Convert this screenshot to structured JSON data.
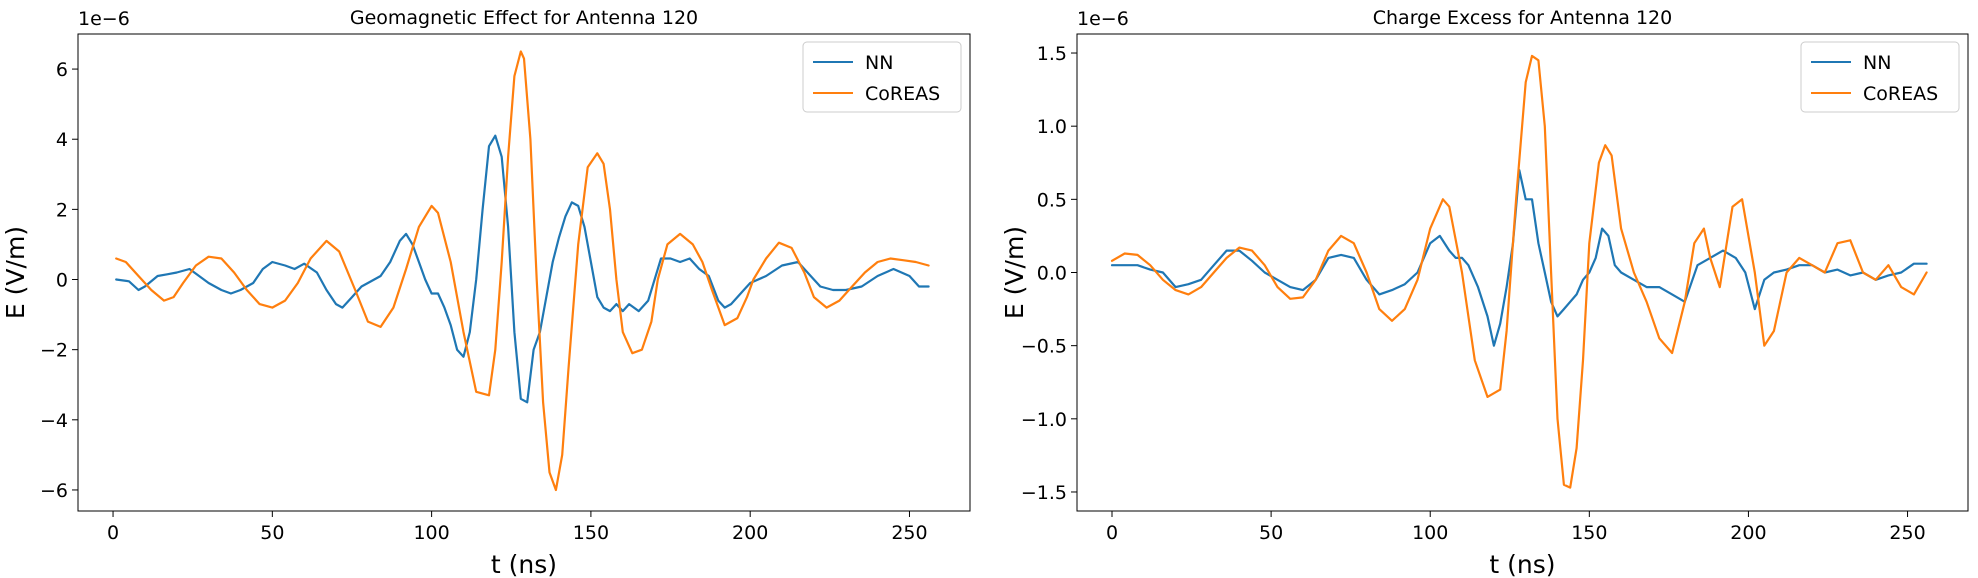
{
  "chart_data": [
    {
      "type": "line",
      "title": "Geomagnetic Effect for Antenna 120",
      "xlabel": "t (ns)",
      "ylabel": "E (V/m)",
      "y_offset_label": "1e−6",
      "xlim": [
        -11,
        269
      ],
      "ylim": [
        -6.6,
        7.0
      ],
      "xticks": [
        0,
        50,
        100,
        150,
        200,
        250
      ],
      "xtick_labels": [
        "0",
        "50",
        "100",
        "150",
        "200",
        "250"
      ],
      "yticks": [
        -6,
        -4,
        -2,
        0,
        2,
        4,
        6
      ],
      "ytick_labels": [
        "−6",
        "−4",
        "−2",
        "0",
        "2",
        "4",
        "6"
      ],
      "legend_position": "top-right",
      "grid": false,
      "series": [
        {
          "name": "NN",
          "color": "#1f77b4",
          "x": [
            1,
            5,
            8,
            10,
            14,
            17,
            20,
            24,
            27,
            30,
            34,
            37,
            40,
            44,
            47,
            50,
            54,
            57,
            60,
            64,
            67,
            70,
            72,
            75,
            78,
            80,
            84,
            87,
            90,
            92,
            94,
            96,
            98,
            100,
            102,
            104,
            106,
            108,
            110,
            112,
            114,
            116,
            118,
            120,
            122,
            124,
            126,
            128,
            130,
            132,
            134,
            136,
            138,
            140,
            142,
            144,
            146,
            148,
            150,
            152,
            154,
            156,
            158,
            160,
            162,
            165,
            168,
            172,
            175,
            178,
            181,
            184,
            187,
            190,
            192,
            194,
            196,
            198,
            200,
            205,
            210,
            215,
            218,
            222,
            226,
            230,
            235,
            240,
            245,
            250,
            253,
            256
          ],
          "y": [
            0.0,
            -0.05,
            -0.3,
            -0.2,
            0.1,
            0.15,
            0.2,
            0.3,
            0.1,
            -0.1,
            -0.3,
            -0.4,
            -0.3,
            -0.1,
            0.3,
            0.5,
            0.4,
            0.3,
            0.45,
            0.2,
            -0.3,
            -0.7,
            -0.8,
            -0.5,
            -0.2,
            -0.1,
            0.1,
            0.5,
            1.1,
            1.3,
            1.0,
            0.5,
            0.0,
            -0.4,
            -0.4,
            -0.8,
            -1.3,
            -2.0,
            -2.2,
            -1.5,
            0.0,
            2.0,
            3.8,
            4.1,
            3.5,
            1.5,
            -1.5,
            -3.4,
            -3.5,
            -2.0,
            -1.5,
            -0.5,
            0.5,
            1.2,
            1.8,
            2.2,
            2.1,
            1.5,
            0.5,
            -0.5,
            -0.8,
            -0.9,
            -0.7,
            -0.9,
            -0.7,
            -0.9,
            -0.6,
            0.6,
            0.6,
            0.5,
            0.6,
            0.3,
            0.1,
            -0.6,
            -0.8,
            -0.7,
            -0.5,
            -0.3,
            -0.1,
            0.1,
            0.4,
            0.5,
            0.2,
            -0.2,
            -0.3,
            -0.3,
            -0.2,
            0.1,
            0.3,
            0.1,
            -0.2,
            -0.2
          ]
        },
        {
          "name": "CoREAS",
          "color": "#ff7f0e",
          "x": [
            1,
            4,
            8,
            12,
            16,
            19,
            22,
            26,
            30,
            34,
            38,
            42,
            46,
            50,
            54,
            58,
            62,
            67,
            71,
            76,
            80,
            84,
            88,
            92,
            96,
            100,
            102,
            106,
            110,
            114,
            118,
            120,
            122,
            124,
            126,
            128,
            129,
            131,
            133,
            135,
            137,
            139,
            141,
            143,
            146,
            149,
            152,
            154,
            156,
            158,
            160,
            163,
            166,
            169,
            171,
            174,
            178,
            182,
            185,
            188,
            192,
            196,
            199,
            201,
            205,
            209,
            213,
            217,
            220,
            224,
            228,
            232,
            236,
            240,
            244,
            248,
            252,
            256
          ],
          "y": [
            0.6,
            0.5,
            0.1,
            -0.3,
            -0.6,
            -0.5,
            -0.1,
            0.4,
            0.65,
            0.6,
            0.2,
            -0.3,
            -0.7,
            -0.8,
            -0.6,
            -0.1,
            0.6,
            1.1,
            0.8,
            -0.3,
            -1.2,
            -1.35,
            -0.8,
            0.3,
            1.5,
            2.1,
            1.9,
            0.5,
            -1.5,
            -3.2,
            -3.3,
            -2.0,
            0.5,
            3.5,
            5.8,
            6.5,
            6.3,
            4.0,
            0.0,
            -3.5,
            -5.5,
            -6.0,
            -5.0,
            -2.5,
            1.0,
            3.2,
            3.6,
            3.3,
            2.0,
            0.0,
            -1.5,
            -2.1,
            -2.0,
            -1.2,
            0.0,
            1.0,
            1.3,
            1.0,
            0.5,
            -0.3,
            -1.3,
            -1.1,
            -0.5,
            0.0,
            0.6,
            1.05,
            0.9,
            0.2,
            -0.5,
            -0.8,
            -0.6,
            -0.2,
            0.2,
            0.5,
            0.6,
            0.55,
            0.5,
            0.4
          ]
        }
      ]
    },
    {
      "type": "line",
      "title": "Charge Excess for Antenna 120",
      "xlabel": "t (ns)",
      "ylabel": "E (V/m)",
      "y_offset_label": "1e−6",
      "xlim": [
        -11,
        269
      ],
      "ylim": [
        -1.63,
        1.63
      ],
      "xticks": [
        0,
        50,
        100,
        150,
        200,
        250
      ],
      "xtick_labels": [
        "0",
        "50",
        "100",
        "150",
        "200",
        "250"
      ],
      "yticks": [
        -1.5,
        -1.0,
        -0.5,
        0.0,
        0.5,
        1.0,
        1.5
      ],
      "ytick_labels": [
        "−1.5",
        "−1.0",
        "−0.5",
        "0.0",
        "0.5",
        "1.0",
        "1.5"
      ],
      "legend_position": "top-right",
      "grid": false,
      "series": [
        {
          "name": "NN",
          "color": "#1f77b4",
          "x": [
            0,
            4,
            8,
            12,
            16,
            20,
            24,
            28,
            32,
            36,
            40,
            44,
            48,
            52,
            56,
            60,
            64,
            68,
            72,
            76,
            80,
            84,
            88,
            92,
            96,
            100,
            103,
            106,
            108,
            110,
            112,
            115,
            118,
            120,
            122,
            124,
            126,
            128,
            130,
            132,
            134,
            136,
            138,
            140,
            142,
            144,
            146,
            148,
            150,
            152,
            154,
            156,
            158,
            160,
            164,
            168,
            172,
            176,
            180,
            184,
            188,
            192,
            196,
            199,
            202,
            205,
            208,
            212,
            216,
            220,
            224,
            228,
            232,
            236,
            240,
            244,
            248,
            252,
            256
          ],
          "y": [
            0.05,
            0.05,
            0.05,
            0.02,
            0.0,
            -0.1,
            -0.08,
            -0.05,
            0.05,
            0.15,
            0.15,
            0.08,
            0.0,
            -0.05,
            -0.1,
            -0.12,
            -0.05,
            0.1,
            0.12,
            0.1,
            -0.05,
            -0.15,
            -0.12,
            -0.08,
            0.0,
            0.2,
            0.25,
            0.15,
            0.1,
            0.1,
            0.05,
            -0.1,
            -0.3,
            -0.5,
            -0.35,
            -0.1,
            0.2,
            0.7,
            0.5,
            0.5,
            0.2,
            0.0,
            -0.2,
            -0.3,
            -0.25,
            -0.2,
            -0.15,
            -0.05,
            0.0,
            0.1,
            0.3,
            0.25,
            0.05,
            0.0,
            -0.05,
            -0.1,
            -0.1,
            -0.15,
            -0.2,
            0.05,
            0.1,
            0.15,
            0.1,
            0.0,
            -0.25,
            -0.05,
            0.0,
            0.02,
            0.05,
            0.05,
            0.0,
            0.02,
            -0.02,
            0.0,
            -0.05,
            -0.02,
            0.0,
            0.06,
            0.06
          ]
        },
        {
          "name": "CoREAS",
          "color": "#ff7f0e",
          "x": [
            0,
            4,
            8,
            12,
            16,
            20,
            24,
            28,
            32,
            36,
            40,
            44,
            48,
            52,
            56,
            60,
            64,
            68,
            72,
            76,
            80,
            84,
            88,
            92,
            96,
            100,
            104,
            106,
            110,
            114,
            118,
            122,
            124,
            127,
            130,
            132,
            134,
            136,
            138,
            140,
            142,
            144,
            146,
            148,
            150,
            153,
            155,
            157,
            160,
            164,
            168,
            172,
            176,
            180,
            183,
            186,
            188,
            191,
            195,
            198,
            202,
            205,
            208,
            212,
            216,
            220,
            224,
            228,
            232,
            236,
            240,
            244,
            248,
            252,
            256
          ],
          "y": [
            0.08,
            0.13,
            0.12,
            0.05,
            -0.05,
            -0.12,
            -0.15,
            -0.1,
            0.0,
            0.1,
            0.17,
            0.15,
            0.05,
            -0.1,
            -0.18,
            -0.17,
            -0.05,
            0.15,
            0.25,
            0.2,
            0.0,
            -0.25,
            -0.33,
            -0.25,
            -0.05,
            0.3,
            0.5,
            0.45,
            0.0,
            -0.6,
            -0.85,
            -0.8,
            -0.4,
            0.5,
            1.3,
            1.48,
            1.45,
            1.0,
            0.0,
            -1.0,
            -1.45,
            -1.47,
            -1.2,
            -0.6,
            0.2,
            0.75,
            0.87,
            0.8,
            0.3,
            0.0,
            -0.2,
            -0.45,
            -0.55,
            -0.2,
            0.2,
            0.3,
            0.1,
            -0.1,
            0.45,
            0.5,
            0.0,
            -0.5,
            -0.4,
            0.0,
            0.1,
            0.05,
            0.0,
            0.2,
            0.22,
            0.0,
            -0.05,
            0.05,
            -0.1,
            -0.15,
            0.0
          ]
        }
      ]
    }
  ]
}
